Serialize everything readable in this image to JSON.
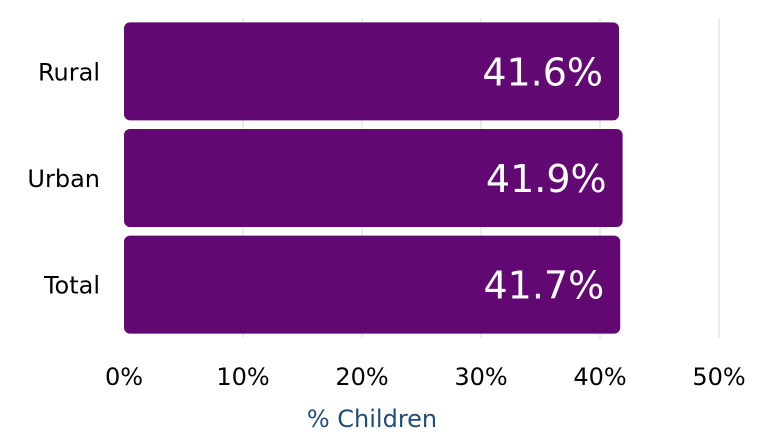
{
  "chart_data": {
    "type": "bar",
    "orientation": "horizontal",
    "categories": [
      "Rural",
      "Urban",
      "Total"
    ],
    "values": [
      41.6,
      41.9,
      41.7
    ],
    "value_labels": [
      "41.6%",
      "41.9%",
      "41.7%"
    ],
    "xlabel": "% Children",
    "ylabel": "",
    "title": "",
    "xlim": [
      0,
      50
    ],
    "xticks": [
      0,
      10,
      20,
      30,
      40,
      50
    ],
    "xtick_labels": [
      "0%",
      "10%",
      "20%",
      "30%",
      "40%",
      "50%"
    ],
    "grid": "vertical",
    "legend": "none",
    "colors": {
      "bar": "#620872",
      "grid": "#d9d9d9",
      "axis_title": "#1f4e79",
      "value_text": "#ffffff"
    }
  }
}
